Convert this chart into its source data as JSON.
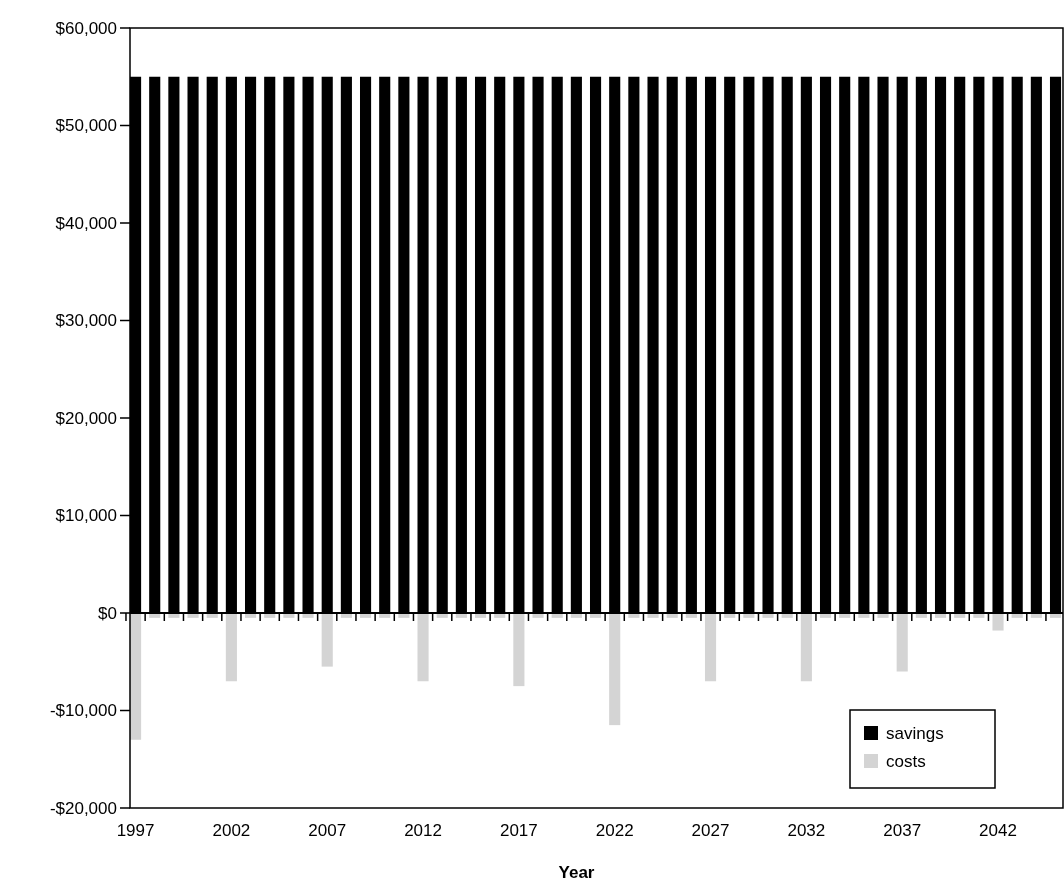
{
  "chart_data": {
    "type": "bar",
    "xlabel": "Year",
    "stacked": true,
    "categories": [
      "1997",
      null,
      null,
      null,
      null,
      "2002",
      null,
      null,
      null,
      null,
      "2007",
      null,
      null,
      null,
      null,
      "2012",
      null,
      null,
      null,
      null,
      "2017",
      null,
      null,
      null,
      null,
      "2022",
      null,
      null,
      null,
      null,
      "2027",
      null,
      null,
      null,
      null,
      "2032",
      null,
      null,
      null,
      null,
      "2037",
      null,
      null,
      null,
      null,
      "2042",
      null,
      null,
      null
    ],
    "series": [
      {
        "name": "savings",
        "color": "#000000",
        "values": [
          55000,
          55000,
          55000,
          55000,
          55000,
          55000,
          55000,
          55000,
          55000,
          55000,
          55000,
          55000,
          55000,
          55000,
          55000,
          55000,
          55000,
          55000,
          55000,
          55000,
          55000,
          55000,
          55000,
          55000,
          55000,
          55000,
          55000,
          55000,
          55000,
          55000,
          55000,
          55000,
          55000,
          55000,
          55000,
          55000,
          55000,
          55000,
          55000,
          55000,
          55000,
          55000,
          55000,
          55000,
          55000,
          55000,
          55000,
          55000,
          55000
        ]
      },
      {
        "name": "costs",
        "color": "#d4d4d4",
        "values": [
          -13000,
          -500,
          -500,
          -500,
          -500,
          -7000,
          -500,
          -500,
          -500,
          -500,
          -5500,
          -500,
          -500,
          -500,
          -500,
          -7000,
          -500,
          -500,
          -500,
          -500,
          -7500,
          -500,
          -500,
          -500,
          -500,
          -11500,
          -500,
          -500,
          -500,
          -500,
          -7000,
          -500,
          -500,
          -500,
          -500,
          -7000,
          -500,
          -500,
          -500,
          -500,
          -6000,
          -500,
          -500,
          -500,
          -500,
          -1800,
          -500,
          -500,
          -500
        ]
      }
    ],
    "ylim": [
      -20000,
      60000
    ],
    "yticks": [
      {
        "value": -20000,
        "label": "-$20,000"
      },
      {
        "value": -10000,
        "label": "-$10,000"
      },
      {
        "value": 0,
        "label": "$0"
      },
      {
        "value": 10000,
        "label": "$10,000"
      },
      {
        "value": 20000,
        "label": "$20,000"
      },
      {
        "value": 30000,
        "label": "$30,000"
      },
      {
        "value": 40000,
        "label": "$40,000"
      },
      {
        "value": 50000,
        "label": "$50,000"
      },
      {
        "value": 60000,
        "label": "$60,000"
      }
    ],
    "legend": "bottom right"
  }
}
